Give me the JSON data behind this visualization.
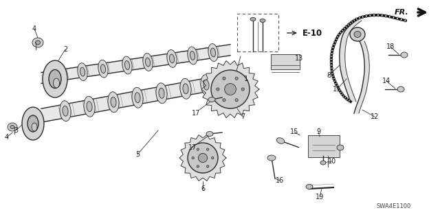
{
  "bg_color": "#f5f5f5",
  "line_color": "#2a2a2a",
  "gray_color": "#888888",
  "light_gray": "#cccccc",
  "figsize": [
    6.4,
    3.19
  ],
  "dpi": 100,
  "diagram_code": "SWA4E1100",
  "ref_label": "E-10",
  "fr_label": "FR.",
  "lw_thin": 0.6,
  "lw_med": 1.0,
  "lw_thick": 1.6,
  "lw_chain": 2.2
}
